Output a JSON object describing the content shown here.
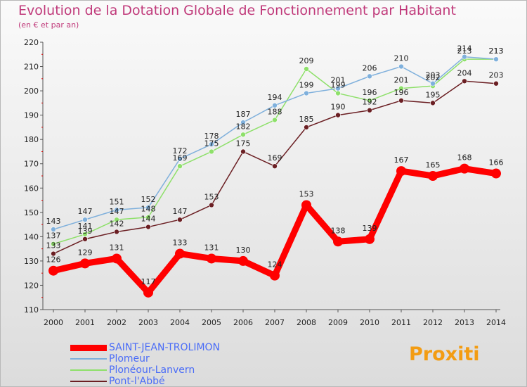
{
  "chart_data": {
    "type": "line",
    "title": "Evolution de la Dotation Globale de Fonctionnement par Habitant",
    "subtitle": "(en € et par an)",
    "xlabel": "",
    "ylabel": "",
    "ylim": [
      110,
      220
    ],
    "yticks": [
      110,
      120,
      130,
      140,
      150,
      160,
      170,
      180,
      190,
      200,
      210,
      220
    ],
    "categories": [
      "2000",
      "2001",
      "2002",
      "2003",
      "2004",
      "2005",
      "2006",
      "2007",
      "2008",
      "2009",
      "2010",
      "2011",
      "2012",
      "2013",
      "2014"
    ],
    "grid": false,
    "legend_position": "bottom-left",
    "series": [
      {
        "name": "Pont-l'Abbé",
        "color": "#6b1f23",
        "values": [
          133,
          139,
          142,
          144,
          147,
          153,
          175,
          169,
          185,
          190,
          192,
          196,
          195,
          204,
          203
        ],
        "labels": [
          "133",
          "139",
          "142",
          "144",
          "147",
          "153",
          "175",
          "169",
          "185",
          "190",
          "192",
          "196",
          "195",
          "204",
          "203"
        ]
      },
      {
        "name": "Plonéour-Lanvern",
        "color": "#8ee06a",
        "values": [
          137,
          141,
          147,
          148,
          169,
          175,
          182,
          188,
          209,
          199,
          196,
          201,
          202,
          213,
          213
        ],
        "labels": [
          "137",
          "141",
          "147",
          "148",
          "169",
          "175",
          "182",
          "188",
          "209",
          "199",
          "196",
          "201",
          "202",
          "213",
          "213"
        ]
      },
      {
        "name": "Plomeur",
        "color": "#7fb0dc",
        "values": [
          143,
          147,
          151,
          152,
          172,
          178,
          187,
          194,
          199,
          201,
          206,
          210,
          203,
          214,
          213
        ],
        "labels": [
          "143",
          "147",
          "151",
          "152",
          "172",
          "178",
          "187",
          "194",
          "199",
          "201",
          "206",
          "210",
          "203",
          "214",
          "213"
        ]
      },
      {
        "name": "SAINT-JEAN-TROLIMON",
        "color": "#ff0000",
        "values": [
          126,
          129,
          131,
          117,
          133,
          131,
          130,
          124,
          153,
          138,
          139,
          167,
          165,
          168,
          166
        ],
        "labels": [
          "126",
          "129",
          "131",
          "117",
          "133",
          "131",
          "130",
          "124",
          "153",
          "138",
          "139",
          "167",
          "165",
          "168",
          "166"
        ]
      }
    ]
  },
  "legend": {
    "items": [
      {
        "label": "SAINT-JEAN-TROLIMON",
        "color": "#ff0000"
      },
      {
        "label": "Plomeur",
        "color": "#7fb0dc"
      },
      {
        "label": "Plonéour-Lanvern",
        "color": "#8ee06a"
      },
      {
        "label": "Pont-l'Abbé",
        "color": "#6b1f23"
      }
    ]
  },
  "logo": {
    "text": "Proxiti"
  }
}
